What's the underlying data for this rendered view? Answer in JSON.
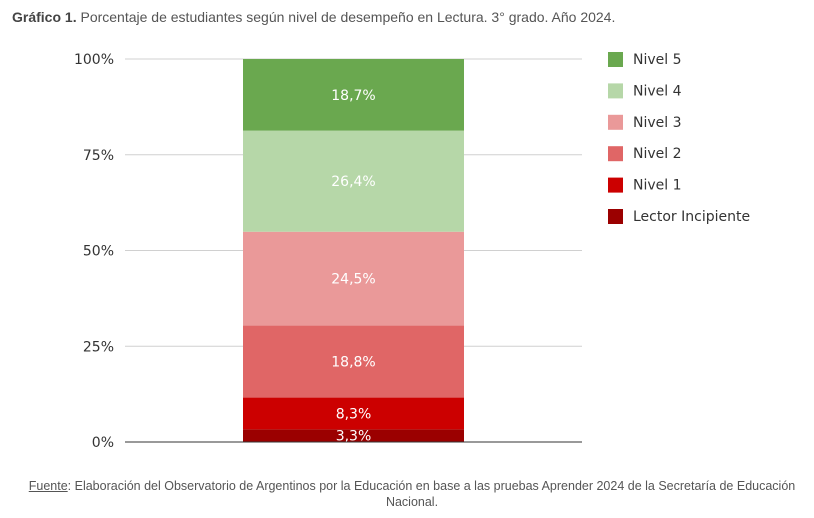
{
  "header": {
    "label": "Gráfico 1.",
    "text": "Porcentaje de estudiantes según nivel de desempeño en Lectura. 3° grado.  Año 2024."
  },
  "footer": {
    "label": "Fuente",
    "text": ": Elaboración del Observatorio de Argentinos por la Educación en base a las pruebas Aprender 2024 de la Secretaría de Educación Nacional."
  },
  "chart_data": {
    "type": "bar",
    "stacked": true,
    "title": "",
    "xlabel": "",
    "ylabel": "",
    "ylim": [
      0,
      100
    ],
    "yticks": [
      "0%",
      "25%",
      "50%",
      "75%",
      "100%"
    ],
    "grid": true,
    "legend_position": "right",
    "categories": [
      ""
    ],
    "series": [
      {
        "name": "Lector Incipiente",
        "values": [
          3.3
        ],
        "label": "3,3%",
        "color": "#9b0000"
      },
      {
        "name": "Nivel 1",
        "values": [
          8.3
        ],
        "label": "8,3%",
        "color": "#cc0000"
      },
      {
        "name": "Nivel 2",
        "values": [
          18.8
        ],
        "label": "18,8%",
        "color": "#e06666"
      },
      {
        "name": "Nivel 3",
        "values": [
          24.5
        ],
        "label": "24,5%",
        "color": "#ea9999"
      },
      {
        "name": "Nivel 4",
        "values": [
          26.4
        ],
        "label": "26,4%",
        "color": "#b6d7a8"
      },
      {
        "name": "Nivel 5",
        "values": [
          18.7
        ],
        "label": "18,7%",
        "color": "#6aa84f"
      }
    ],
    "legend_order": [
      "Nivel 5",
      "Nivel 4",
      "Nivel 3",
      "Nivel 2",
      "Nivel 1",
      "Lector Incipiente"
    ]
  }
}
